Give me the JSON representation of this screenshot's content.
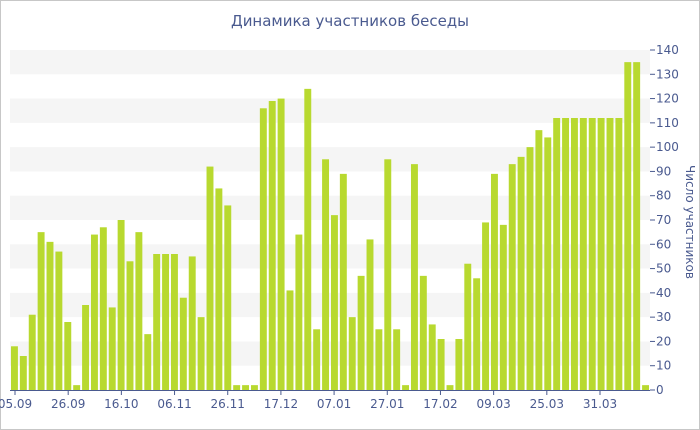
{
  "chart_data": {
    "type": "bar",
    "title": "Динамика участников беседы",
    "xlabel": "",
    "ylabel": "Число участников",
    "ylim": [
      0,
      140
    ],
    "yticks": [
      0,
      10,
      20,
      30,
      40,
      50,
      60,
      70,
      80,
      90,
      100,
      110,
      120,
      130,
      140
    ],
    "x_tick_labels": [
      "05.09",
      "26.09",
      "16.10",
      "06.11",
      "26.11",
      "17.12",
      "07.01",
      "27.01",
      "17.02",
      "09.03",
      "25.03",
      "31.03"
    ],
    "values": [
      18,
      14,
      31,
      65,
      61,
      57,
      28,
      2,
      35,
      64,
      67,
      34,
      70,
      53,
      65,
      23,
      56,
      56,
      56,
      38,
      55,
      30,
      92,
      83,
      76,
      2,
      2,
      2,
      116,
      119,
      120,
      41,
      64,
      124,
      25,
      95,
      72,
      89,
      30,
      47,
      62,
      25,
      95,
      25,
      2,
      93,
      47,
      27,
      21,
      2,
      21,
      52,
      46,
      69,
      89,
      68,
      93,
      96,
      100,
      107,
      104,
      112,
      112,
      112,
      112,
      112,
      112,
      112,
      112,
      135,
      135,
      2
    ],
    "bar_color": "#b8d92f",
    "band_color": "#f5f5f5",
    "text_color": "#4a5a8f",
    "grid": "alternating horizontal bands",
    "legend": "none"
  }
}
